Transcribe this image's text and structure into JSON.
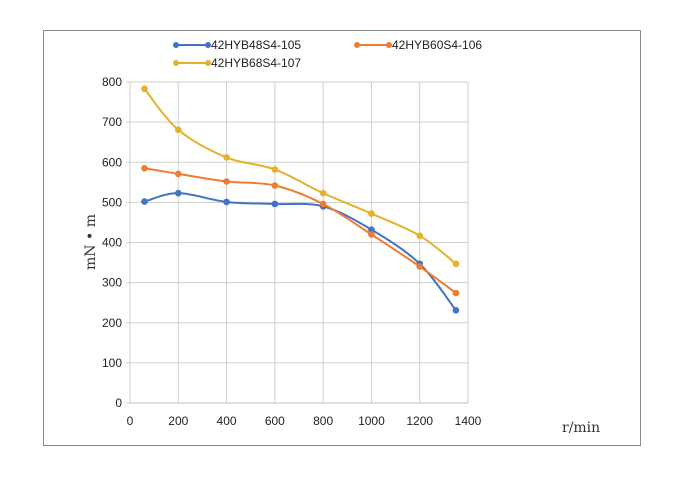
{
  "chart_data": {
    "type": "line",
    "title": "",
    "xlabel": "r/min",
    "ylabel": "mN • m",
    "xlim": [
      0,
      1400
    ],
    "ylim": [
      0,
      800
    ],
    "xticks": [
      0,
      200,
      400,
      600,
      800,
      1000,
      1200,
      1400
    ],
    "yticks": [
      0,
      100,
      200,
      300,
      400,
      500,
      600,
      700,
      800
    ],
    "grid": true,
    "legend_position": "top",
    "x": [
      60,
      200,
      400,
      600,
      800,
      1000,
      1200,
      1350
    ],
    "series": [
      {
        "name": "42HYB48S4-105",
        "color": "#4472c4",
        "values": [
          502,
          523,
          501,
          496,
          490,
          432,
          347,
          231
        ]
      },
      {
        "name": "42HYB60S4-106",
        "color": "#ed7d31",
        "values": [
          585,
          571,
          552,
          542,
          496,
          420,
          340,
          274
        ]
      },
      {
        "name": "42HYB68S4-107",
        "color": "#e6b12a",
        "values": [
          783,
          681,
          612,
          582,
          523,
          472,
          417,
          347
        ]
      }
    ]
  }
}
